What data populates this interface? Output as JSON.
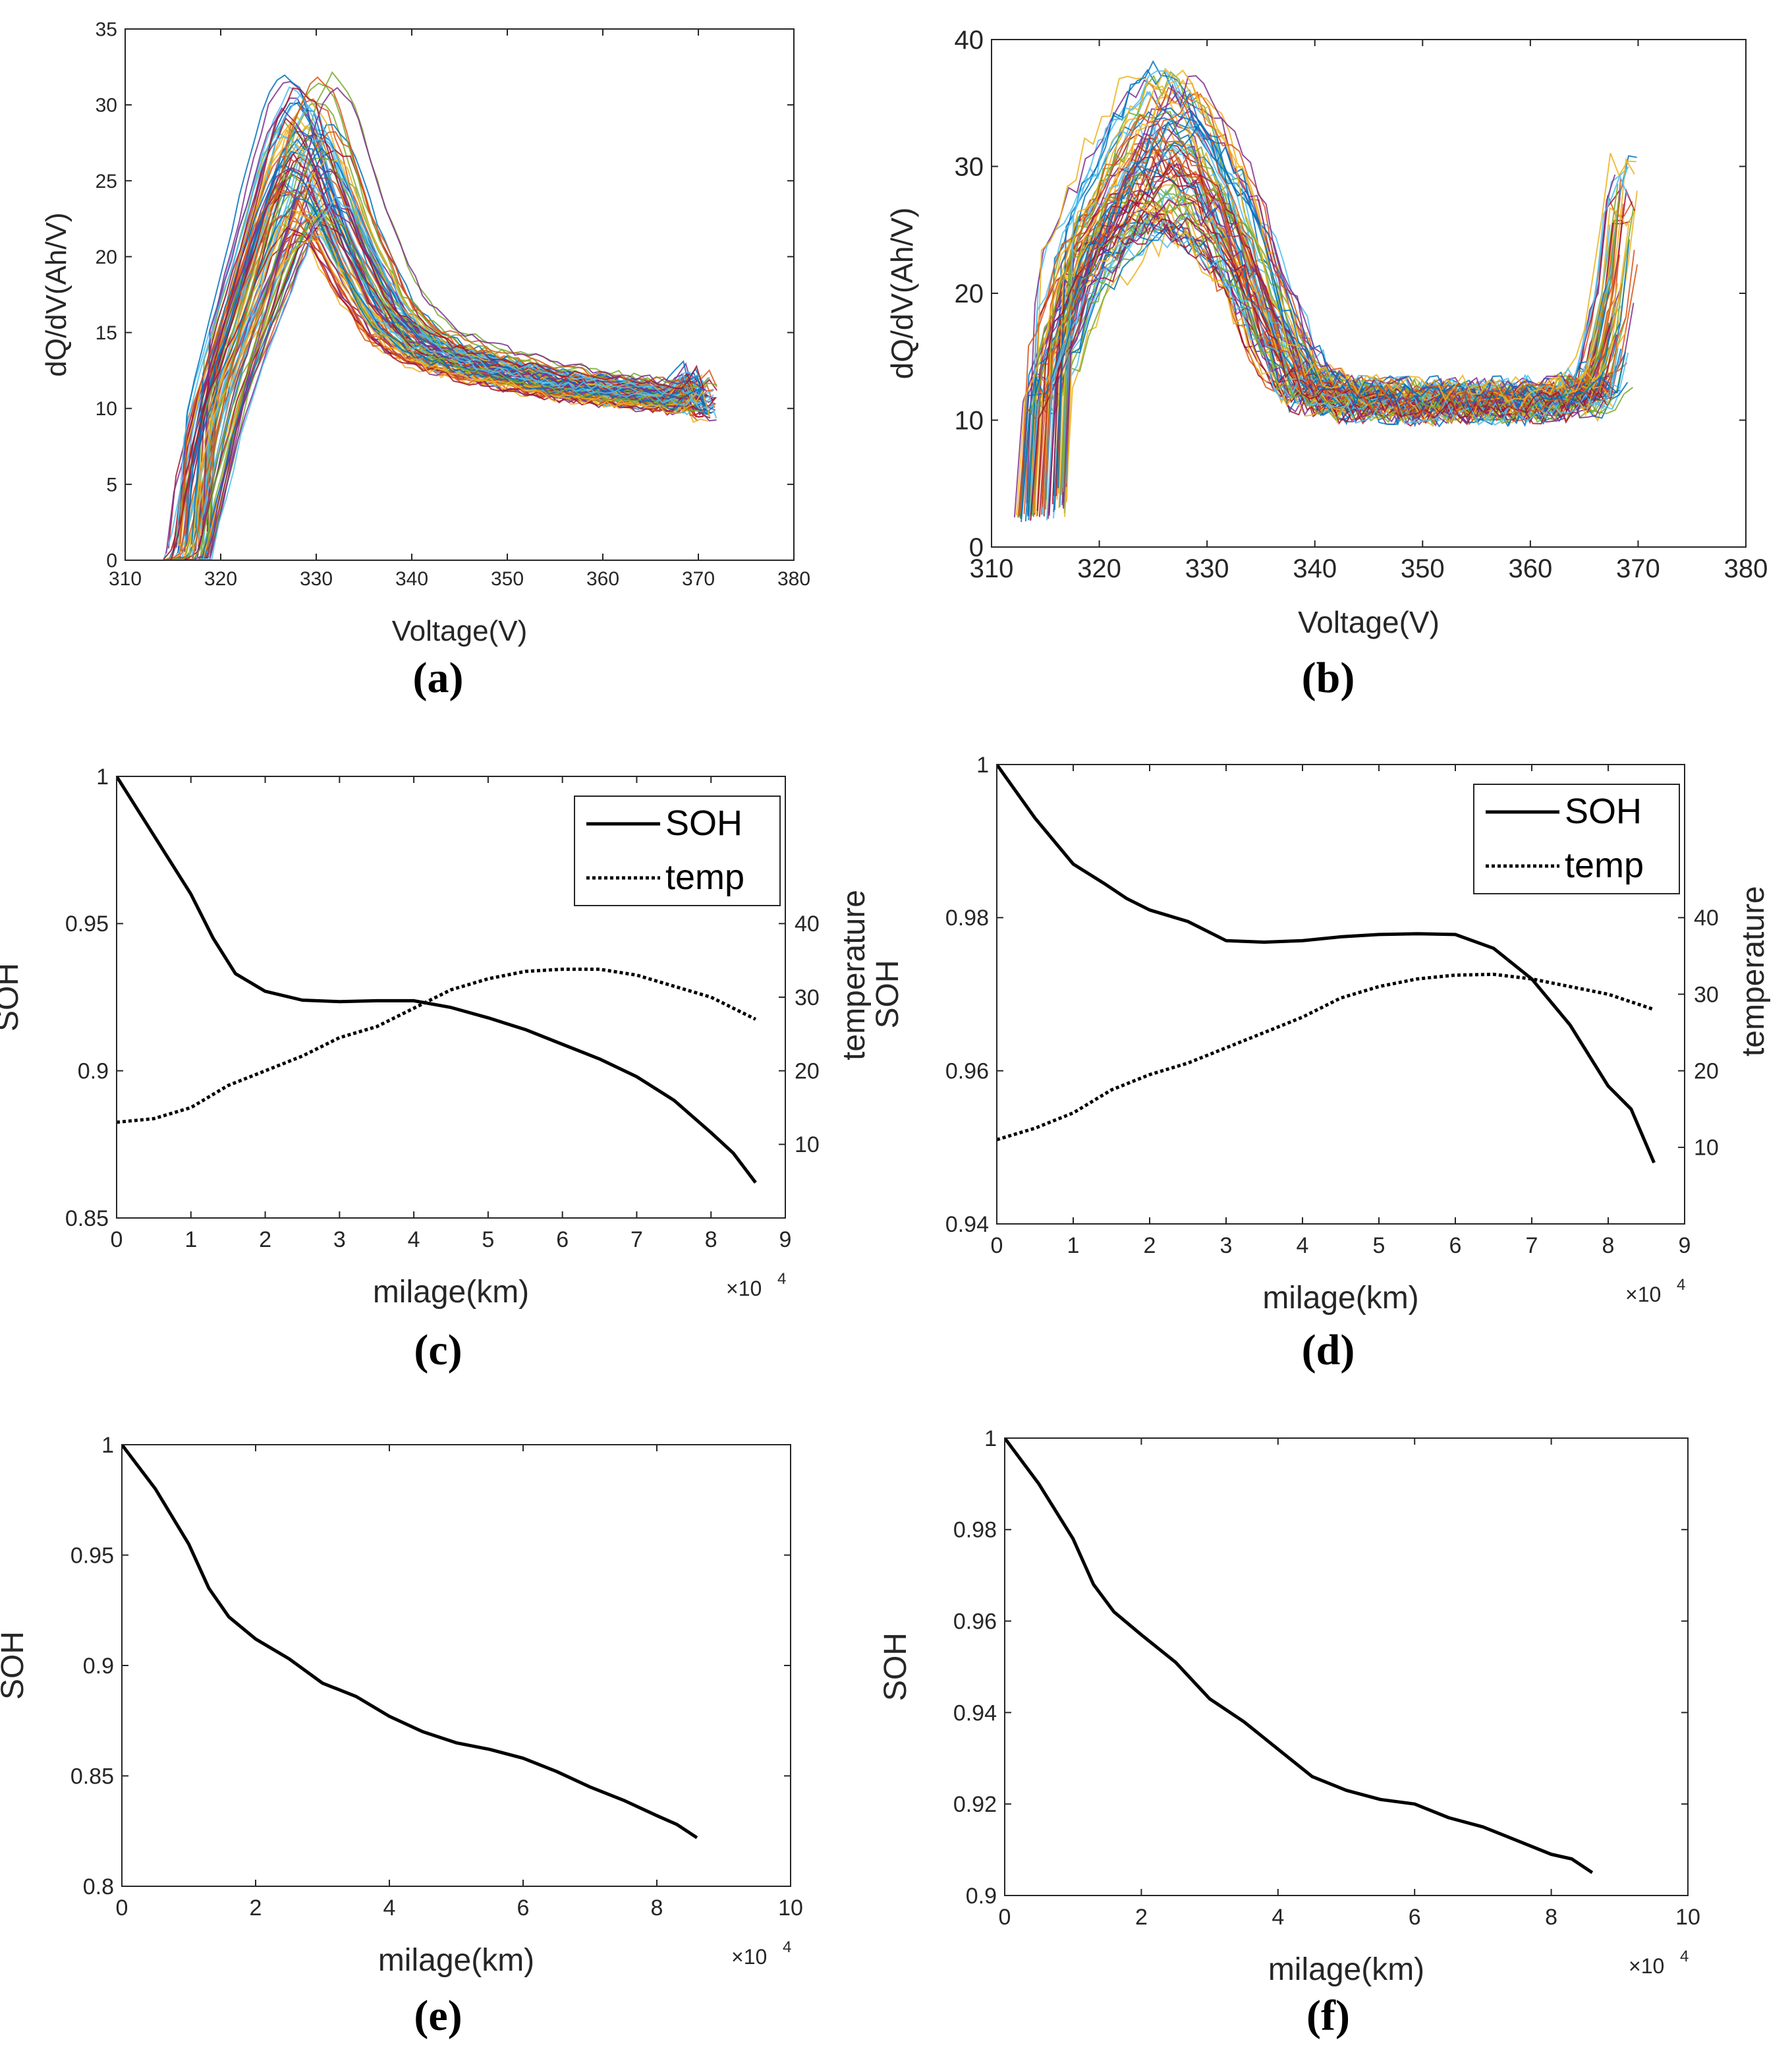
{
  "chart_data": [
    {
      "id": "a",
      "type": "line",
      "panel_label": "(a)",
      "xlabel": "Voltage(V)",
      "ylabel": "dQ/dV(Ah/V)",
      "xlim": [
        310,
        380
      ],
      "ylim": [
        0,
        35
      ],
      "xticks": [
        "310",
        "320",
        "330",
        "340",
        "350",
        "360",
        "370",
        "380"
      ],
      "yticks": [
        "0",
        "5",
        "10",
        "15",
        "20",
        "25",
        "30",
        "35"
      ],
      "grid": false,
      "legend": "none",
      "curve_count": 90,
      "typical_curve": {
        "x": [
          316,
          320,
          324,
          327,
          329,
          331,
          334,
          338,
          342,
          348,
          355,
          360,
          365,
          369,
          371,
          372
        ],
        "y": [
          0,
          11,
          19,
          25,
          27,
          26,
          21,
          16,
          14,
          12.8,
          11.8,
          11.3,
          11.0,
          10.6,
          12,
          10
        ]
      },
      "series_colors": [
        "#0072bd",
        "#d95319",
        "#edb120",
        "#7e2f8e",
        "#77ac30",
        "#4dbeee",
        "#a2142f"
      ]
    },
    {
      "id": "b",
      "type": "line",
      "panel_label": "(b)",
      "xlabel": "Voltage(V)",
      "ylabel": "dQ/dV(Ah/V)",
      "xlim": [
        310,
        380
      ],
      "ylim": [
        0,
        40
      ],
      "xticks": [
        "310",
        "320",
        "330",
        "340",
        "350",
        "360",
        "370",
        "380"
      ],
      "yticks": [
        "0",
        "10",
        "20",
        "30",
        "40"
      ],
      "grid": false,
      "legend": "none",
      "curve_count": 80,
      "typical_curve": {
        "x": [
          314,
          318,
          322,
          325,
          327,
          330,
          333,
          336,
          339,
          343,
          350,
          358,
          364,
          367,
          369,
          370
        ],
        "y": [
          12,
          22,
          28,
          31,
          31.5,
          29,
          25,
          18,
          13,
          11.8,
          11.5,
          11.6,
          11.8,
          13,
          20,
          28
        ]
      },
      "series_colors": [
        "#0072bd",
        "#d95319",
        "#edb120",
        "#7e2f8e",
        "#77ac30",
        "#4dbeee",
        "#a2142f"
      ]
    },
    {
      "id": "c",
      "type": "line",
      "panel_label": "(c)",
      "xlabel": "milage(km)",
      "ylabel": "SOH",
      "y2label": "temperature",
      "x_multiplier": "×10",
      "x_multiplier_exp": "4",
      "xlim": [
        0,
        90000
      ],
      "ylim": [
        0.85,
        1
      ],
      "y2lim": [
        0,
        60
      ],
      "xticks": [
        "0",
        "1",
        "2",
        "3",
        "4",
        "5",
        "6",
        "7",
        "8",
        "9"
      ],
      "yticks": [
        "0.85",
        "0.9",
        "0.95",
        "1"
      ],
      "y2ticks": [
        "10",
        "20",
        "30",
        "40"
      ],
      "grid": false,
      "legend": "top-right",
      "series": [
        {
          "name": "SOH",
          "style": "solid",
          "x": [
            0,
            5000,
            10000,
            13000,
            16000,
            20000,
            25000,
            30000,
            35000,
            40000,
            45000,
            50000,
            55000,
            60000,
            65000,
            70000,
            75000,
            80000,
            83000,
            86000
          ],
          "y": [
            1.0,
            0.98,
            0.96,
            0.945,
            0.933,
            0.927,
            0.924,
            0.9235,
            0.9238,
            0.9238,
            0.9215,
            0.918,
            0.914,
            0.909,
            0.904,
            0.898,
            0.89,
            0.879,
            0.872,
            0.862
          ]
        },
        {
          "name": "temp",
          "style": "dotted",
          "axis": "right",
          "x": [
            0,
            5000,
            10000,
            15000,
            20000,
            25000,
            30000,
            35000,
            40000,
            45000,
            50000,
            55000,
            60000,
            65000,
            70000,
            75000,
            80000,
            86000
          ],
          "y": [
            13,
            13.5,
            15,
            18,
            20,
            22,
            24.5,
            26,
            28.5,
            31,
            32.5,
            33.5,
            33.8,
            33.8,
            33,
            31.5,
            30,
            27
          ]
        }
      ]
    },
    {
      "id": "d",
      "type": "line",
      "panel_label": "(d)",
      "xlabel": "milage(km)",
      "ylabel": "SOH",
      "y2label": "temperature",
      "x_multiplier": "×10",
      "x_multiplier_exp": "4",
      "xlim": [
        0,
        90000
      ],
      "ylim": [
        0.94,
        1
      ],
      "y2lim": [
        0,
        60
      ],
      "xticks": [
        "0",
        "1",
        "2",
        "3",
        "4",
        "5",
        "6",
        "7",
        "8",
        "9"
      ],
      "yticks": [
        "0.94",
        "0.96",
        "0.98",
        "1"
      ],
      "y2ticks": [
        "10",
        "20",
        "30",
        "40"
      ],
      "grid": false,
      "legend": "top-right",
      "series": [
        {
          "name": "SOH",
          "style": "solid",
          "x": [
            0,
            5000,
            10000,
            14000,
            17000,
            20000,
            25000,
            30000,
            35000,
            40000,
            45000,
            50000,
            55000,
            60000,
            65000,
            70000,
            75000,
            80000,
            83000,
            86000
          ],
          "y": [
            1.0,
            0.993,
            0.987,
            0.9845,
            0.9825,
            0.981,
            0.9795,
            0.977,
            0.9768,
            0.977,
            0.9775,
            0.9778,
            0.9779,
            0.9778,
            0.976,
            0.972,
            0.966,
            0.958,
            0.955,
            0.948
          ]
        },
        {
          "name": "temp",
          "style": "dotted",
          "axis": "right",
          "x": [
            0,
            5000,
            10000,
            15000,
            20000,
            25000,
            30000,
            35000,
            40000,
            45000,
            50000,
            55000,
            60000,
            65000,
            70000,
            75000,
            80000,
            86000
          ],
          "y": [
            11,
            12.5,
            14.5,
            17.5,
            19.5,
            21,
            23,
            25,
            27,
            29.5,
            31,
            32,
            32.5,
            32.6,
            32,
            31,
            30,
            28
          ]
        }
      ]
    },
    {
      "id": "e",
      "type": "line",
      "panel_label": "(e)",
      "xlabel": "milage(km)",
      "ylabel": "SOH",
      "x_multiplier": "×10",
      "x_multiplier_exp": "4",
      "xlim": [
        0,
        100000
      ],
      "ylim": [
        0.8,
        1
      ],
      "xticks": [
        "0",
        "2",
        "4",
        "6",
        "8",
        "10"
      ],
      "yticks": [
        "0.8",
        "0.85",
        "0.9",
        "0.95",
        "1"
      ],
      "grid": false,
      "legend": "none",
      "series": [
        {
          "x": [
            0,
            5000,
            10000,
            13000,
            16000,
            20000,
            25000,
            30000,
            35000,
            40000,
            45000,
            50000,
            55000,
            60000,
            65000,
            70000,
            75000,
            80000,
            83000,
            86000
          ],
          "y": [
            1.0,
            0.98,
            0.955,
            0.935,
            0.922,
            0.912,
            0.903,
            0.892,
            0.886,
            0.877,
            0.87,
            0.865,
            0.862,
            0.858,
            0.852,
            0.845,
            0.839,
            0.832,
            0.828,
            0.822
          ]
        }
      ]
    },
    {
      "id": "f",
      "type": "line",
      "panel_label": "(f)",
      "xlabel": "milage(km)",
      "ylabel": "SOH",
      "x_multiplier": "×10",
      "x_multiplier_exp": "4",
      "xlim": [
        0,
        100000
      ],
      "ylim": [
        0.9,
        1
      ],
      "xticks": [
        "0",
        "2",
        "4",
        "6",
        "8",
        "10"
      ],
      "yticks": [
        "0.9",
        "0.92",
        "0.94",
        "0.96",
        "0.98",
        "1"
      ],
      "grid": false,
      "legend": "none",
      "series": [
        {
          "x": [
            0,
            5000,
            10000,
            13000,
            16000,
            20000,
            25000,
            30000,
            35000,
            40000,
            45000,
            50000,
            55000,
            60000,
            65000,
            70000,
            75000,
            80000,
            83000,
            86000
          ],
          "y": [
            1.0,
            0.99,
            0.978,
            0.968,
            0.962,
            0.957,
            0.951,
            0.943,
            0.938,
            0.932,
            0.926,
            0.923,
            0.921,
            0.92,
            0.917,
            0.915,
            0.912,
            0.909,
            0.908,
            0.905
          ]
        }
      ]
    }
  ]
}
